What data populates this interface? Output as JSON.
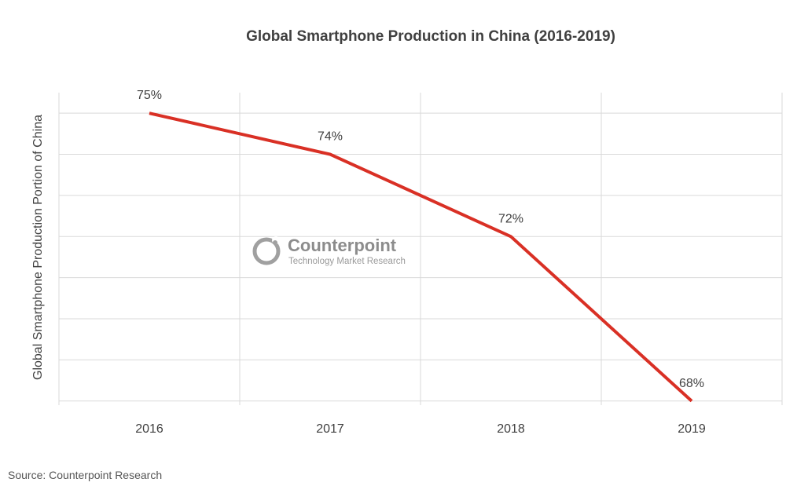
{
  "chart_data": {
    "type": "line",
    "title": "Global Smartphone Production in China (2016-2019)",
    "ylabel": "Global Smartphone Production Portion of China",
    "xlabel": "",
    "categories": [
      "2016",
      "2017",
      "2018",
      "2019"
    ],
    "series": [
      {
        "values": [
          75,
          74,
          72,
          68
        ],
        "labels": [
          "75%",
          "74%",
          "72%",
          "68%"
        ],
        "color": "#d93025"
      }
    ],
    "ylim": [
      67.9,
      75.5
    ],
    "y_gridlines": [
      68,
      69,
      70,
      71,
      72,
      73,
      74,
      75
    ],
    "grid": true,
    "gridline_color": "#d9d9d9"
  },
  "watermark": {
    "brand": "Counterpoint",
    "tagline": "Technology Market Research",
    "icon": "counterpoint-logo-icon"
  },
  "footer": {
    "source": "Source: Counterpoint Research"
  }
}
